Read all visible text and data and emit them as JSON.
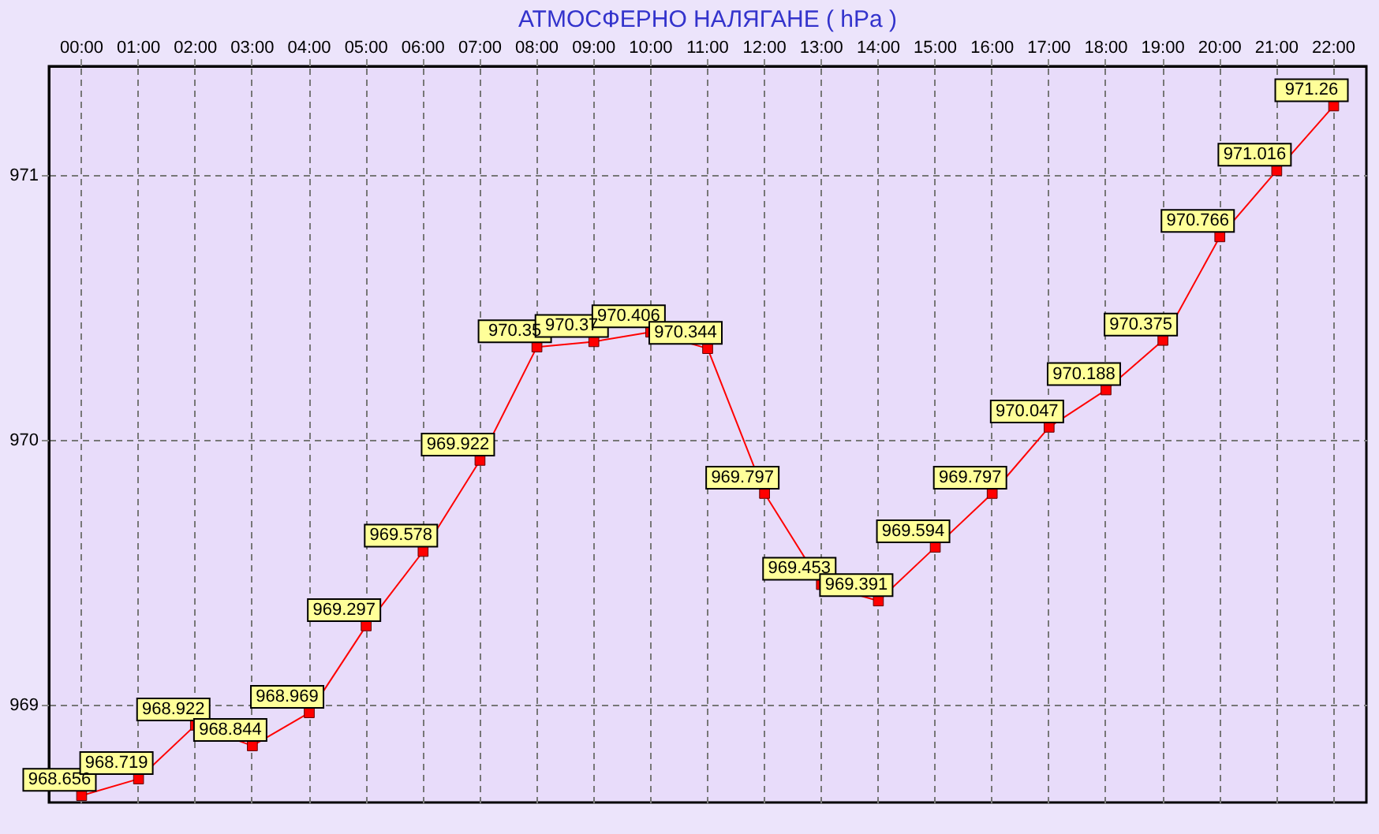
{
  "chart_data": {
    "type": "line",
    "title": "АТМОСФЕРНО НАЛЯГАНЕ  ( hPa )",
    "categories": [
      "00:00",
      "01:00",
      "02:00",
      "03:00",
      "04:00",
      "05:00",
      "06:00",
      "07:00",
      "08:00",
      "09:00",
      "10:00",
      "11:00",
      "12:00",
      "13:00",
      "14:00",
      "15:00",
      "16:00",
      "17:00",
      "18:00",
      "19:00",
      "20:00",
      "21:00",
      "22:00"
    ],
    "series": [
      {
        "color": "#ff0000",
        "values": [
          968.656,
          968.719,
          968.922,
          968.844,
          968.969,
          969.297,
          969.578,
          969.922,
          970.35,
          970.37,
          970.406,
          970.344,
          969.797,
          969.453,
          969.391,
          969.594,
          969.797,
          970.047,
          970.188,
          970.375,
          970.766,
          971.016,
          971.26
        ],
        "value_labels": [
          "968.656",
          "968.719",
          "968.922",
          "968.844",
          "968.969",
          "969.297",
          "969.578",
          "969.922",
          "970.35",
          "970.37",
          "970.406",
          "970.344",
          "969.797",
          "969.453",
          "969.391",
          "969.594",
          "969.797",
          "970.047",
          "970.188",
          "970.375",
          "970.766",
          "971.016",
          "971.26"
        ]
      }
    ],
    "ylim": [
      968.63,
      971.41
    ],
    "yticks": [
      969,
      970,
      971
    ],
    "grid": true,
    "marker": "square",
    "line_style": "solid"
  }
}
